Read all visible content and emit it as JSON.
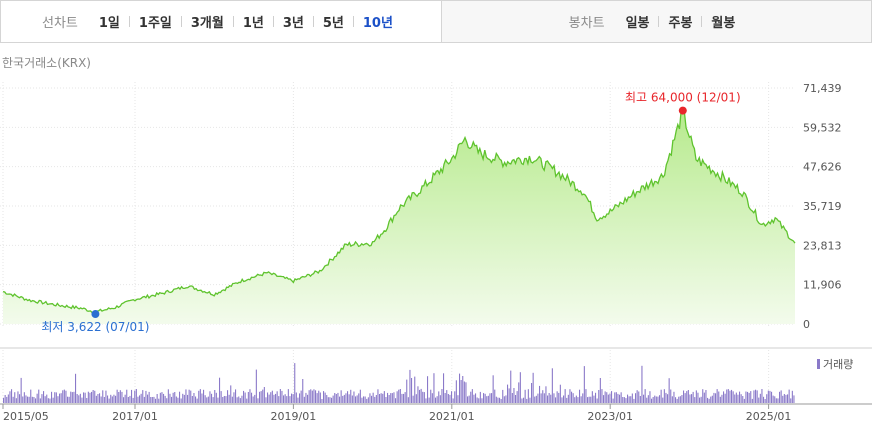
{
  "toolbar": {
    "line_chart_label": "선차트",
    "periods": [
      "1일",
      "1주일",
      "3개월",
      "1년",
      "3년",
      "5년",
      "10년"
    ],
    "active_period": "10년",
    "candle_chart_label": "봉차트",
    "candle_periods": [
      "일봉",
      "주봉",
      "월봉"
    ]
  },
  "exchange_label": "한국거래소(KRX)",
  "colors": {
    "line": "#5fc32e",
    "fill_top": "#b6ea8c",
    "fill_bottom": "#f3fbec",
    "max_marker": "#e8262b",
    "min_marker": "#2a6fd1",
    "volume": "#8a79c9",
    "active_tab": "#1c51c8"
  },
  "chart_data": {
    "type": "area",
    "y_ticks": [
      "71,439",
      "59,532",
      "47,626",
      "35,719",
      "23,813",
      "11,906",
      "0"
    ],
    "ylim": [
      0,
      71439
    ],
    "x_ticks": [
      "2015/05",
      "2017/01",
      "2019/01",
      "2021/01",
      "2023/01",
      "2025/01"
    ],
    "annotations": {
      "max": {
        "label": "최고",
        "value": "64,000",
        "date": "(12/01)",
        "x": "2023/12",
        "y": 64000
      },
      "min": {
        "label": "최저",
        "value": "3,622",
        "date": "(07/01)",
        "x": "2016/07",
        "y": 3622
      }
    },
    "series": [
      {
        "x": [
          "2015/05",
          "2015/09",
          "2016/01",
          "2016/05",
          "2016/07",
          "2016/10",
          "2017/01",
          "2017/05",
          "2017/09",
          "2018/01",
          "2018/05",
          "2018/09",
          "2019/01",
          "2019/05",
          "2019/09",
          "2020/01",
          "2020/03",
          "2020/05",
          "2020/09",
          "2021/01",
          "2021/03",
          "2021/05",
          "2021/09",
          "2022/01",
          "2022/05",
          "2022/09",
          "2022/11",
          "2023/01",
          "2023/05",
          "2023/09",
          "2023/12",
          "2024/02",
          "2024/05",
          "2024/09",
          "2024/12",
          "2025/02",
          "2025/05"
        ],
        "values": [
          9800,
          7200,
          5800,
          4700,
          3622,
          5000,
          7500,
          9200,
          11500,
          9000,
          13000,
          15500,
          13000,
          16000,
          24000,
          24500,
          29000,
          35000,
          42000,
          50000,
          56000,
          52000,
          49000,
          50500,
          46000,
          40000,
          32000,
          34000,
          40000,
          45000,
          64000,
          50000,
          46000,
          40000,
          30000,
          32000,
          24500
        ]
      }
    ],
    "volume_label": "거래량"
  }
}
